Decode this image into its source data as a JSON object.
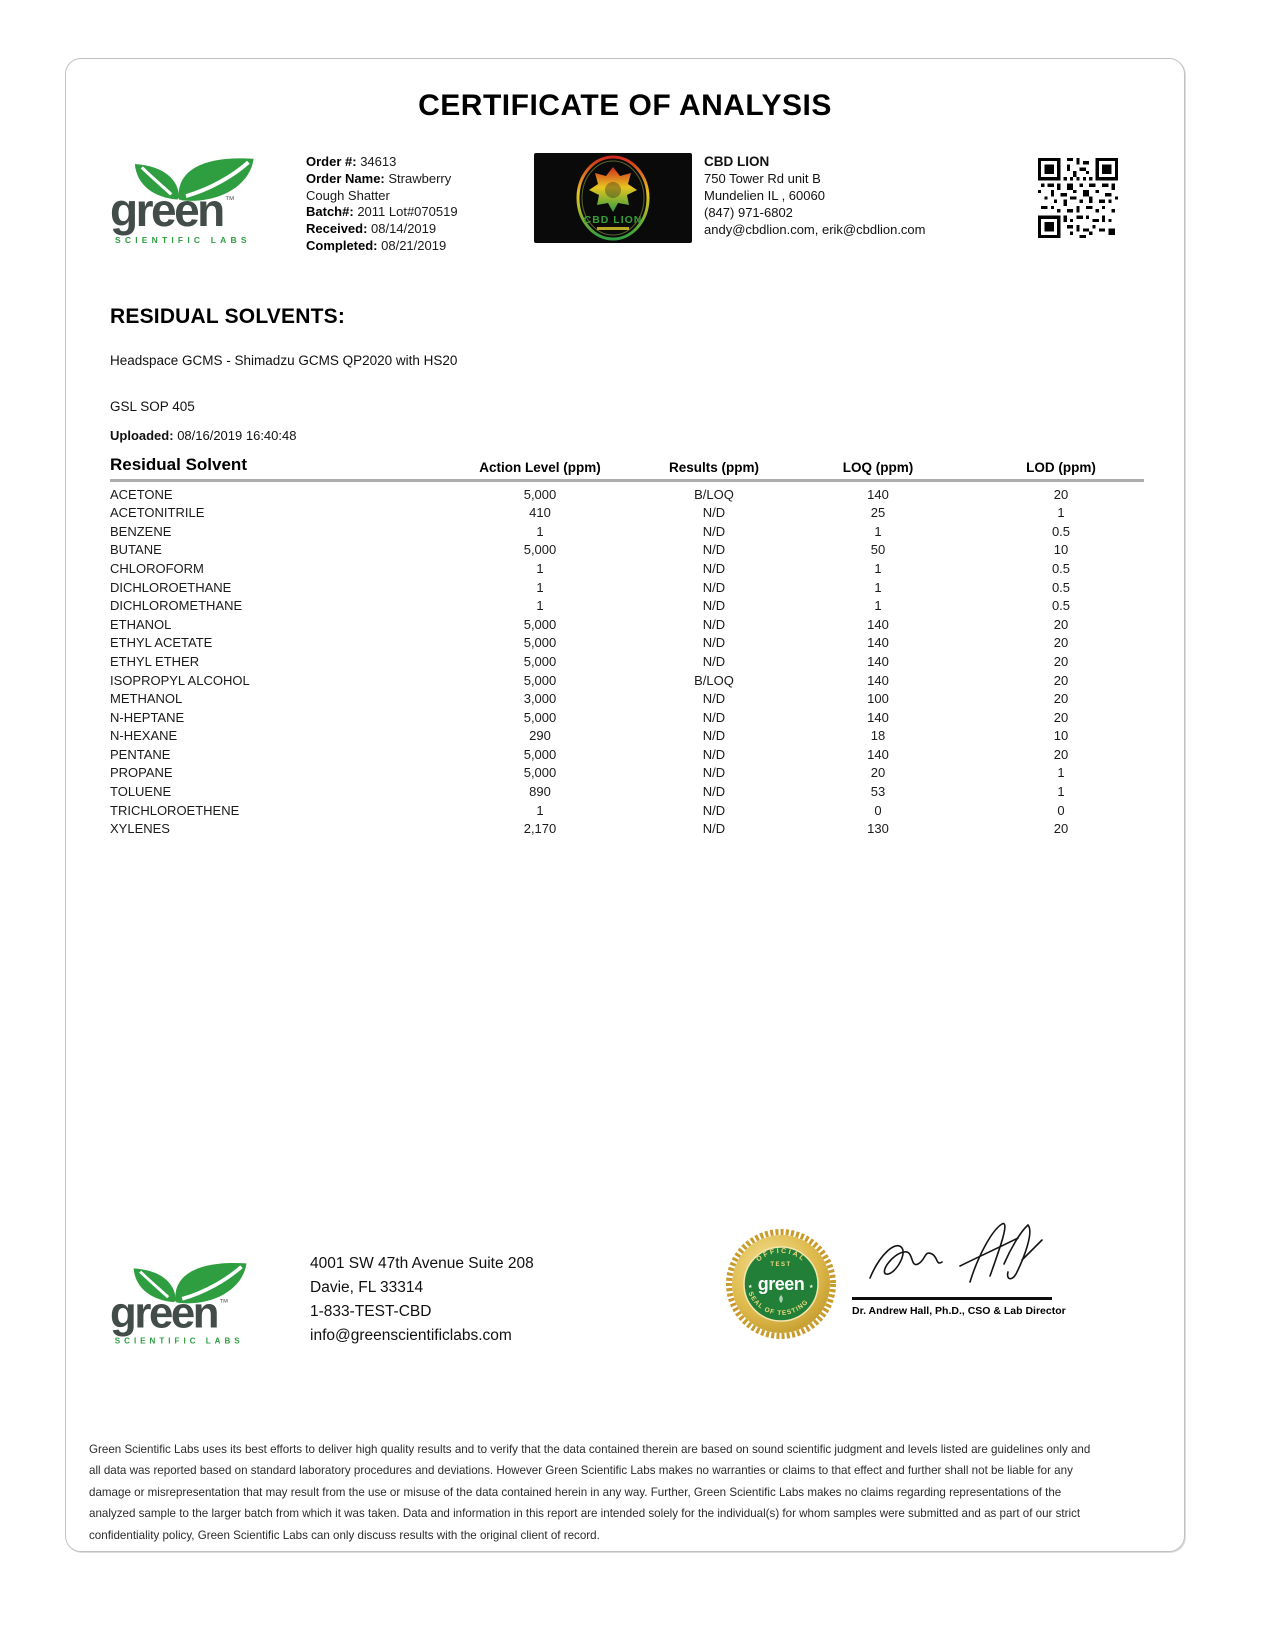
{
  "title": "CERTIFICATE OF ANALYSIS",
  "brand": {
    "name": "green",
    "tm": "™",
    "sub": "SCIENTIFIC LABS"
  },
  "header": {
    "order": {
      "order_label": "Order #:",
      "order_value": "34613",
      "name_label": "Order Name:",
      "name_value": "Strawberry Cough Shatter",
      "batch_label": "Batch#:",
      "batch_value": "2011 Lot#070519",
      "received_label": "Received:",
      "received_value": "08/14/2019",
      "completed_label": "Completed:",
      "completed_value": "08/21/2019"
    },
    "client": {
      "name": "CBD LION",
      "address1": "750 Tower Rd unit B",
      "address2": "Mundelien IL , 60060",
      "phone": "(847) 971-6802",
      "emails": "andy@cbdlion.com, erik@cbdlion.com"
    },
    "client_logo_text": "CBD LION"
  },
  "section": {
    "heading": "RESIDUAL SOLVENTS:",
    "method": "Headspace GCMS - Shimadzu GCMS QP2020 with HS20",
    "sop": "GSL SOP 405",
    "uploaded_label": "Uploaded:",
    "uploaded_value": "08/16/2019 16:40:48"
  },
  "table": {
    "columns": [
      "Residual Solvent",
      "Action Level (ppm)",
      "Results (ppm)",
      "LOQ (ppm)",
      "LOD (ppm)"
    ],
    "rows": [
      [
        "ACETONE",
        "5,000",
        "B/LOQ",
        "140",
        "20"
      ],
      [
        "ACETONITRILE",
        "410",
        "N/D",
        "25",
        "1"
      ],
      [
        "BENZENE",
        "1",
        "N/D",
        "1",
        "0.5"
      ],
      [
        "BUTANE",
        "5,000",
        "N/D",
        "50",
        "10"
      ],
      [
        "CHLOROFORM",
        "1",
        "N/D",
        "1",
        "0.5"
      ],
      [
        "DICHLOROETHANE",
        "1",
        "N/D",
        "1",
        "0.5"
      ],
      [
        "DICHLOROMETHANE",
        "1",
        "N/D",
        "1",
        "0.5"
      ],
      [
        "ETHANOL",
        "5,000",
        "N/D",
        "140",
        "20"
      ],
      [
        "ETHYL ACETATE",
        "5,000",
        "N/D",
        "140",
        "20"
      ],
      [
        "ETHYL ETHER",
        "5,000",
        "N/D",
        "140",
        "20"
      ],
      [
        "ISOPROPYL ALCOHOL",
        "5,000",
        "B/LOQ",
        "140",
        "20"
      ],
      [
        "METHANOL",
        "3,000",
        "N/D",
        "100",
        "20"
      ],
      [
        "N-HEPTANE",
        "5,000",
        "N/D",
        "140",
        "20"
      ],
      [
        "N-HEXANE",
        "290",
        "N/D",
        "18",
        "10"
      ],
      [
        "PENTANE",
        "5,000",
        "N/D",
        "140",
        "20"
      ],
      [
        "PROPANE",
        "5,000",
        "N/D",
        "20",
        "1"
      ],
      [
        "TOLUENE",
        "890",
        "N/D",
        "53",
        "1"
      ],
      [
        "TRICHLOROETHENE",
        "1",
        "N/D",
        "0",
        "0"
      ],
      [
        "XYLENES",
        "2,170",
        "N/D",
        "130",
        "20"
      ]
    ]
  },
  "footer": {
    "address1": "4001 SW 47th Avenue Suite 208",
    "address2": "Davie, FL 33314",
    "phone": "1-833-TEST-CBD",
    "email": "info@greenscientificlabs.com",
    "signer": "Dr. Andrew Hall, Ph.D., CSO & Lab Director",
    "seal": {
      "arc_top": "OFFICIAL",
      "line_top": "TEST",
      "center": "green",
      "arc_bottom": "SEAL OF TESTING"
    }
  },
  "disclaimer": "Green Scientific Labs uses its best efforts to deliver high quality results and to verify that the data contained therein are based on sound scientific judgment and levels listed are guidelines only and all data was reported based on standard laboratory procedures and deviations. However Green Scientific Labs makes no warranties or claims to that effect and further shall not be liable for any damage or misrepresentation that may result from the use or misuse of the data contained herein in any way. Further, Green Scientific Labs makes no claims regarding representations of the analyzed sample to the larger batch from which it was taken. Data and information in this report are intended solely for the individual(s) for whom samples were submitted and as part of our strict confidentiality policy, Green Scientific Labs can only discuss results with the original client of record."
}
